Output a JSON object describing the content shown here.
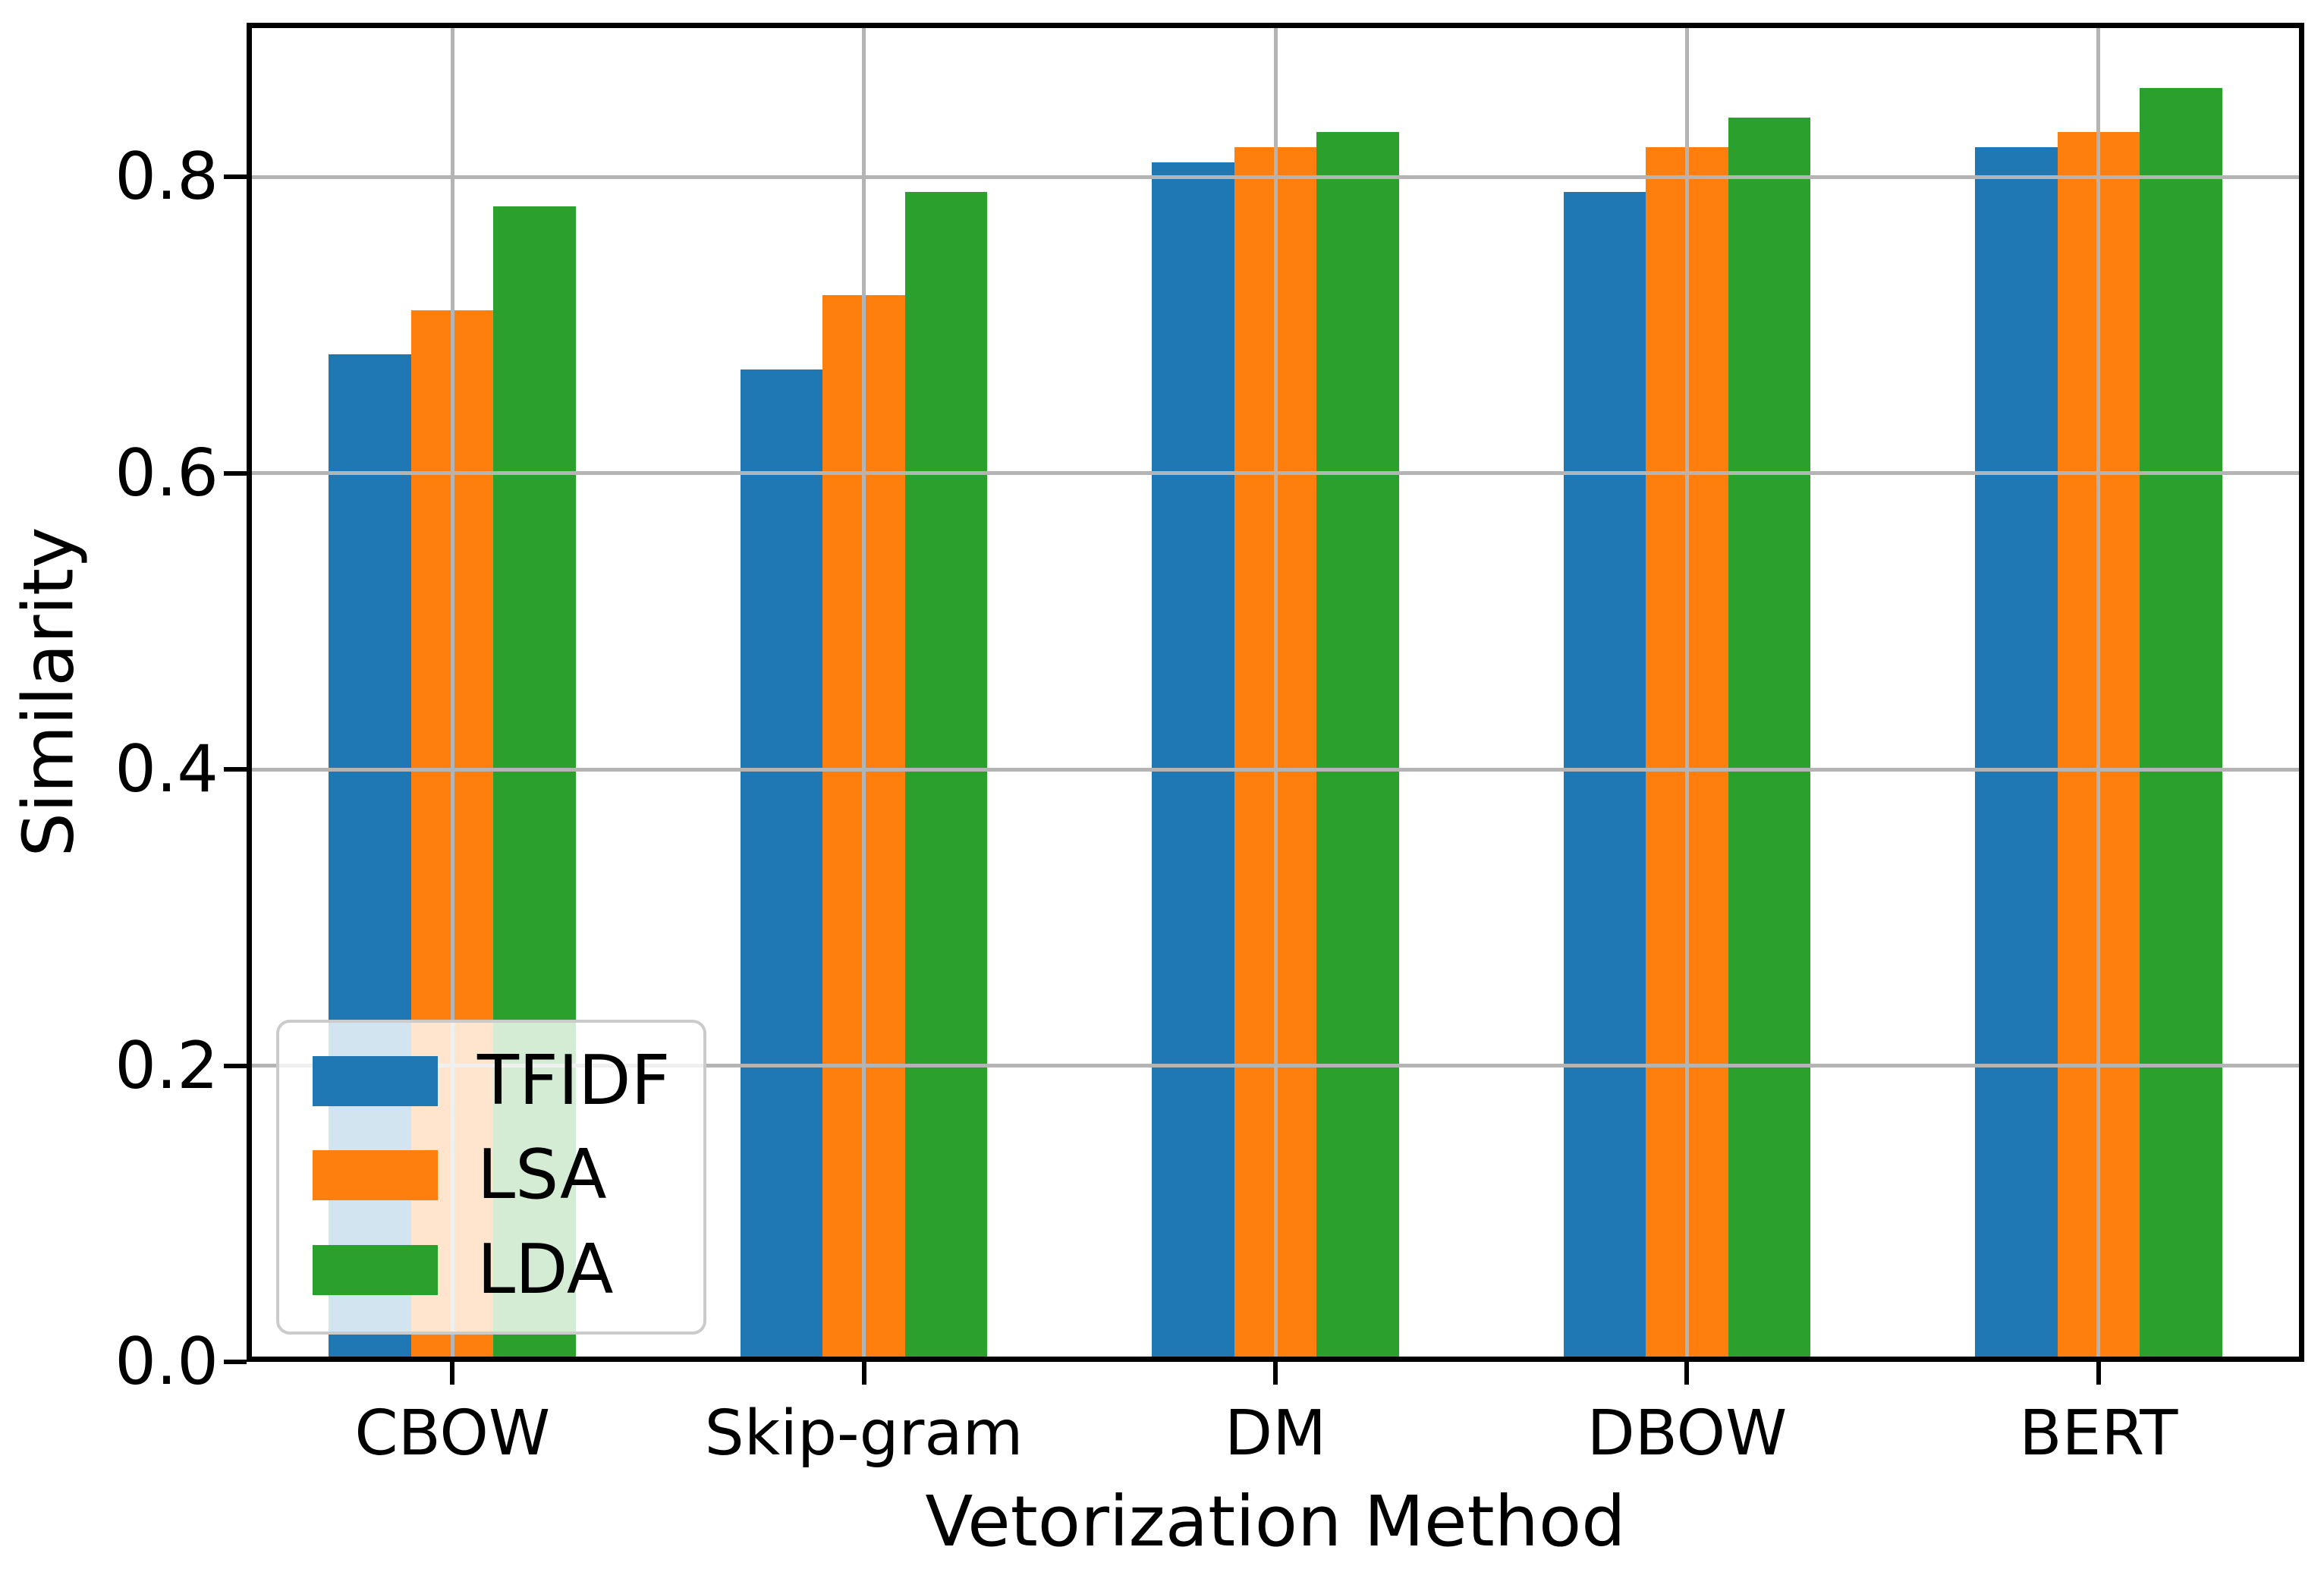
{
  "figure": {
    "background": "#ffffff"
  },
  "chart_data": {
    "type": "bar",
    "title": "",
    "xlabel": "Vetorization Method",
    "ylabel": "Similarity",
    "categories": [
      "CBOW",
      "Skip-gram",
      "DM",
      "DBOW",
      "BERT"
    ],
    "series": [
      {
        "name": "TFIDF",
        "color": "#1f77b4",
        "values": [
          0.68,
          0.67,
          0.81,
          0.79,
          0.82
        ]
      },
      {
        "name": "LSA",
        "color": "#ff7f0e",
        "values": [
          0.71,
          0.72,
          0.82,
          0.82,
          0.83
        ]
      },
      {
        "name": "LDA",
        "color": "#2ca02c",
        "values": [
          0.78,
          0.79,
          0.83,
          0.84,
          0.86
        ]
      }
    ],
    "ylim": [
      0,
      0.904
    ],
    "yticks": [
      0,
      0.2,
      0.4,
      0.6,
      0.8
    ],
    "ytick_labels": [
      "0.0",
      "0.2",
      "0.4",
      "0.6",
      "0.8"
    ],
    "grid": true,
    "grid_color": "#b4b4b4",
    "grid_above_bars": true,
    "legend_position": "lower left",
    "bar_group_fraction": 0.6
  }
}
